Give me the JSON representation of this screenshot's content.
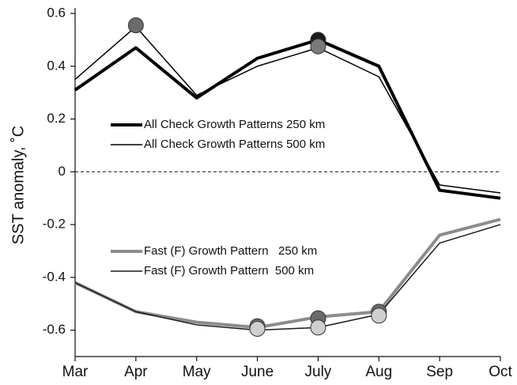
{
  "chart_data": {
    "type": "line",
    "y_label": "SST anomaly, ˚C",
    "categories": [
      "Mar",
      "Apr",
      "May",
      "June",
      "July",
      "Aug",
      "Sep",
      "Oct"
    ],
    "series": [
      {
        "name": "All Check Growth Patterns 250 km",
        "color": "#000000",
        "width": 4,
        "values": [
          0.31,
          0.47,
          0.28,
          0.43,
          0.5,
          0.4,
          -0.07,
          -0.1
        ]
      },
      {
        "name": "All Check Growth Patterns 500 km",
        "color": "#000000",
        "width": 1.5,
        "values": [
          0.35,
          0.55,
          0.29,
          0.4,
          0.47,
          0.36,
          -0.05,
          -0.08
        ]
      },
      {
        "name": "Fast (F) Growth Pattern   250 km",
        "color": "#8c8c8c",
        "width": 4,
        "values": [
          -0.42,
          -0.53,
          -0.57,
          -0.59,
          -0.55,
          -0.53,
          -0.24,
          -0.18
        ]
      },
      {
        "name": "Fast (F) Growth Pattern  500 km",
        "color": "#1a1a1a",
        "width": 1.5,
        "values": [
          -0.42,
          -0.53,
          -0.58,
          -0.6,
          -0.59,
          -0.54,
          -0.27,
          -0.2
        ]
      }
    ],
    "markers": [
      {
        "color": "#1a1a1a",
        "values": [
          null,
          null,
          null,
          null,
          0.5,
          null,
          null,
          null
        ]
      },
      {
        "color": "#6b6b6b",
        "values": [
          null,
          0.555,
          null,
          -0.585,
          -0.555,
          -0.53,
          null,
          null
        ]
      },
      {
        "color": "#7a7a7a",
        "values": [
          null,
          null,
          null,
          null,
          0.475,
          null,
          null,
          null
        ]
      },
      {
        "color": "#cfcfcf",
        "values": [
          null,
          null,
          null,
          -0.595,
          -0.59,
          -0.545,
          null,
          null
        ]
      }
    ],
    "ylim": [
      -0.7,
      0.6
    ],
    "yticks": [
      0.6,
      0.4,
      0.2,
      0,
      -0.2,
      -0.4,
      -0.6
    ],
    "zero_line": true
  }
}
